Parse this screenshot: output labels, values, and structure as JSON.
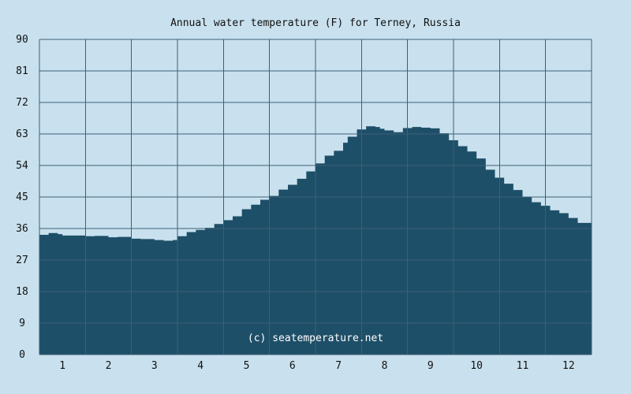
{
  "chart_data": {
    "type": "area",
    "title": "Annual water temperature (F) for Terney, Russia",
    "xlabel": "",
    "ylabel": "",
    "ylim": [
      0,
      90
    ],
    "y_ticks": [
      0,
      9,
      18,
      27,
      36,
      45,
      54,
      63,
      72,
      81,
      90
    ],
    "xlim": [
      0.5,
      12.5
    ],
    "x_ticks": [
      1,
      2,
      3,
      4,
      5,
      6,
      7,
      8,
      9,
      10,
      11,
      12
    ],
    "x_tick_labels": [
      "1",
      "2",
      "3",
      "4",
      "5",
      "6",
      "7",
      "8",
      "9",
      "10",
      "11",
      "12"
    ],
    "grid": true,
    "colors": {
      "background": "#c9e1ee",
      "fill": "#1e4f68",
      "grid": "#3d5f78"
    },
    "annotation": "(c) seatemperature.net",
    "series": [
      {
        "x": [
          0.5,
          0.7,
          0.9,
          1.0,
          1.2,
          1.5,
          1.7,
          2.0,
          2.2,
          2.5,
          2.7,
          3.0,
          3.2,
          3.4,
          3.5,
          3.7,
          3.9,
          4.1,
          4.3,
          4.5,
          4.7,
          4.9,
          5.1,
          5.3,
          5.5,
          5.7,
          5.9,
          6.1,
          6.3,
          6.5,
          6.7,
          6.9,
          7.1,
          7.2,
          7.4,
          7.6,
          7.8,
          7.9,
          8.0,
          8.2,
          8.4,
          8.6,
          8.8,
          9.0,
          9.2,
          9.4,
          9.6,
          9.8,
          10.0,
          10.2,
          10.4,
          10.6,
          10.8,
          11.0,
          11.2,
          11.4,
          11.6,
          11.8,
          12.0,
          12.2,
          12.5
        ],
        "y": [
          34.2,
          34.7,
          34.4,
          34.0,
          34.0,
          33.8,
          33.9,
          33.5,
          33.6,
          33.1,
          33.0,
          32.7,
          32.5,
          32.7,
          33.8,
          35.0,
          35.6,
          36.2,
          37.3,
          38.4,
          39.5,
          41.5,
          42.8,
          44.2,
          45.3,
          47.1,
          48.5,
          50.2,
          52.3,
          54.6,
          56.8,
          58.2,
          60.5,
          62.2,
          64.3,
          65.2,
          65.0,
          64.5,
          64.0,
          63.5,
          64.7,
          65.0,
          64.8,
          64.6,
          63.2,
          61.2,
          59.5,
          58.0,
          56.0,
          52.8,
          50.5,
          48.8,
          47.0,
          45.0,
          43.5,
          42.5,
          41.2,
          40.4,
          39.0,
          37.6,
          36.5
        ]
      }
    ]
  }
}
